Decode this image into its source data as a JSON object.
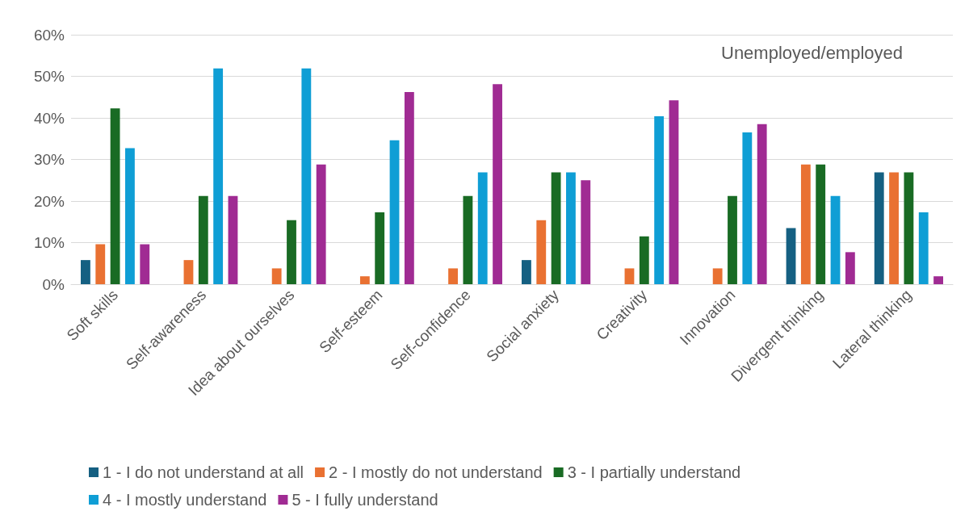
{
  "chart_data": {
    "type": "bar",
    "categories": [
      "Soft skills",
      "Self-awareness",
      "Idea about ourselves",
      "Self-esteem",
      "Self-confidence",
      "Social anxiety",
      "Creativity",
      "Innovation",
      "Divergent thinking",
      "Lateral thinking"
    ],
    "series": [
      {
        "name": "1 - I do not understand at all",
        "color": "#156082",
        "values": [
          5.8,
          0,
          0,
          0,
          0,
          5.8,
          0,
          0,
          13.5,
          26.9
        ]
      },
      {
        "name": "2 - I mostly do not understand",
        "color": "#e97132",
        "values": [
          9.6,
          5.8,
          3.8,
          1.9,
          3.8,
          15.4,
          3.8,
          3.8,
          28.8,
          26.9
        ]
      },
      {
        "name": "3 - I partially understand",
        "color": "#196b24",
        "values": [
          42.3,
          21.2,
          15.4,
          17.3,
          21.2,
          26.9,
          11.5,
          21.2,
          28.8,
          26.9
        ]
      },
      {
        "name": "4 - I mostly understand",
        "color": "#0f9ed5",
        "values": [
          32.7,
          51.9,
          51.9,
          34.6,
          26.9,
          26.9,
          40.4,
          36.5,
          21.2,
          17.3
        ]
      },
      {
        "name": "5 - I fully understand",
        "color": "#a02b93",
        "values": [
          9.6,
          21.2,
          28.8,
          46.2,
          48.1,
          25.0,
          44.2,
          38.5,
          7.7,
          1.9
        ]
      }
    ],
    "annotations": [
      "Unemployed/employed"
    ],
    "ylim": [
      0,
      60
    ],
    "yticks": [
      {
        "value": 0,
        "label": "0%"
      },
      {
        "value": 10,
        "label": "10%"
      },
      {
        "value": 20,
        "label": "20%"
      },
      {
        "value": 30,
        "label": "30%"
      },
      {
        "value": 40,
        "label": "40%"
      },
      {
        "value": 50,
        "label": "50%"
      },
      {
        "value": 60,
        "label": "60%"
      }
    ],
    "grid": "y",
    "legend": "bottom"
  }
}
